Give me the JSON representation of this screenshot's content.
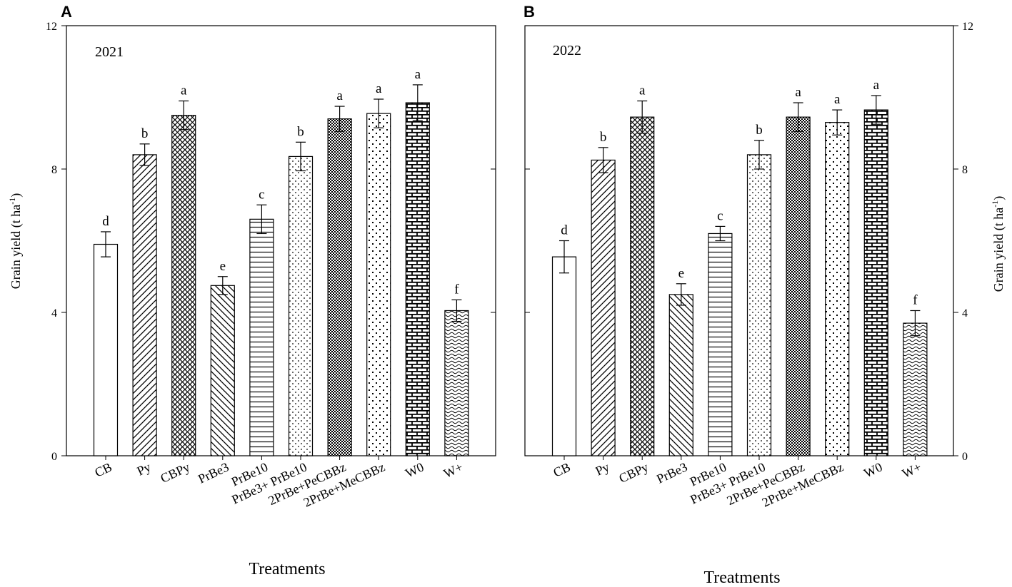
{
  "figure": {
    "x_axis_label": "Treatments",
    "y_axis_label_main": "Grain yield (t ha",
    "y_axis_label_sup": "-1",
    "y_axis_label_close": ")",
    "y_ticks": [
      "0",
      "4",
      "8",
      "12"
    ]
  },
  "chart_data": [
    {
      "type": "bar",
      "panel": "A",
      "title": "2021",
      "xlabel": "Treatments",
      "ylabel": "Grain yield (t ha-1)",
      "ylim": [
        0,
        12
      ],
      "categories": [
        "CB",
        "Py",
        "CBPy",
        "PrBe3",
        "PrBe10",
        "PrBe3+ PrBe10",
        "2PrBe+PeCBBz",
        "2PrBe+MeCBBz",
        "W0",
        "W+"
      ],
      "values": [
        5.9,
        8.4,
        9.5,
        4.75,
        6.6,
        8.35,
        9.4,
        9.55,
        9.85,
        4.05
      ],
      "errors": [
        0.35,
        0.3,
        0.4,
        0.25,
        0.4,
        0.4,
        0.35,
        0.4,
        0.5,
        0.3
      ],
      "letters": [
        "d",
        "b",
        "a",
        "e",
        "c",
        "b",
        "a",
        "a",
        "a",
        "f"
      ],
      "patterns": [
        "none",
        "diag",
        "cross",
        "backdiag",
        "horiz",
        "dots",
        "dense",
        "sparse",
        "brick",
        "wave"
      ]
    },
    {
      "type": "bar",
      "panel": "B",
      "title": "2022",
      "xlabel": "Treatments",
      "ylabel": "Grain yield (t ha-1)",
      "ylim": [
        0,
        12
      ],
      "categories": [
        "CB",
        "Py",
        "CBPy",
        "PrBe3",
        "PrBe10",
        "PrBe3+ PrBe10",
        "2PrBe+PeCBBz",
        "2PrBe+MeCBBz",
        "W0",
        "W+"
      ],
      "values": [
        5.55,
        8.25,
        9.45,
        4.5,
        6.2,
        8.4,
        9.45,
        9.3,
        9.65,
        3.7
      ],
      "errors": [
        0.45,
        0.35,
        0.45,
        0.3,
        0.2,
        0.4,
        0.4,
        0.35,
        0.4,
        0.35
      ],
      "letters": [
        "d",
        "b",
        "a",
        "e",
        "c",
        "b",
        "a",
        "a",
        "a",
        "f"
      ],
      "patterns": [
        "none",
        "diag",
        "cross",
        "backdiag",
        "horiz",
        "dots",
        "dense",
        "sparse",
        "brick",
        "wave"
      ]
    }
  ]
}
